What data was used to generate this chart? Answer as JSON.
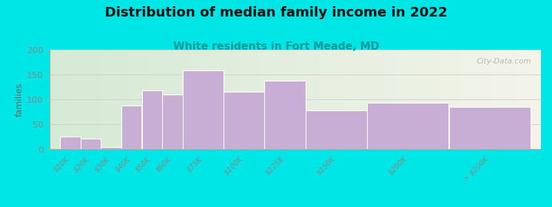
{
  "title": "Distribution of median family income in 2022",
  "subtitle": "White residents in Fort Meade, MD",
  "ylabel": "families",
  "categories": [
    "$10K",
    "$20K",
    "$30K",
    "$40K",
    "$50K",
    "$60K",
    "$75K",
    "$100K",
    "$125K",
    "$150K",
    "$200K",
    "> $200K"
  ],
  "values": [
    25,
    21,
    4,
    88,
    118,
    110,
    158,
    115,
    137,
    78,
    93,
    85
  ],
  "left_edges": [
    0,
    1,
    2,
    3,
    4,
    5,
    6,
    8,
    10,
    12,
    15,
    19
  ],
  "widths": [
    1,
    1,
    1,
    1,
    1,
    1,
    2,
    2,
    2,
    3,
    4,
    4
  ],
  "bar_color": "#c8aed4",
  "bar_edge_color": "#ffffff",
  "background_outer": "#00e5e5",
  "plot_bg_left": "#d5ead5",
  "plot_bg_right": "#f4f4ea",
  "title_fontsize": 14,
  "subtitle_fontsize": 11,
  "subtitle_color": "#009999",
  "ylabel_color": "#666666",
  "tick_color": "#888888",
  "ylim": [
    0,
    200
  ],
  "yticks": [
    0,
    50,
    100,
    150,
    200
  ],
  "watermark": "City-Data.com"
}
